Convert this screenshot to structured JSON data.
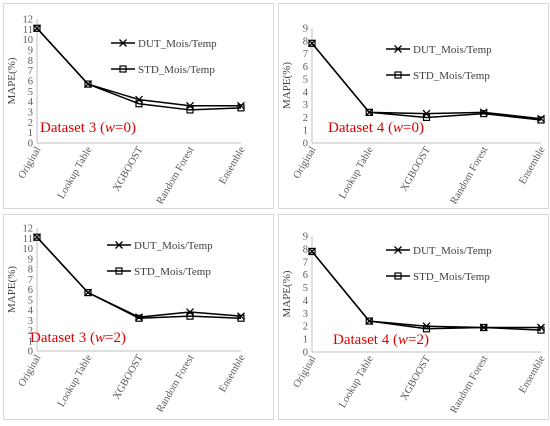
{
  "chart_data": [
    {
      "type": "line",
      "annotation": {
        "prefix": "Dataset 3 (",
        "var": "w",
        "suffix": "=0)"
      },
      "categories": [
        "Original",
        "Lookup Table",
        "XGBOOST",
        "Random Forest",
        "Ensemble"
      ],
      "ylabel": "MAPE(%)",
      "ylim": [
        0,
        12
      ],
      "ystep": 1,
      "grid": false,
      "legend_placement": "right",
      "series": [
        {
          "name": "DUT_Mois/Temp",
          "marker": "x",
          "values": [
            11.1,
            5.7,
            4.2,
            3.6,
            3.6
          ]
        },
        {
          "name": "STD_Mois/Temp",
          "marker": "square",
          "values": [
            11.1,
            5.7,
            3.8,
            3.2,
            3.4
          ]
        }
      ]
    },
    {
      "type": "line",
      "annotation": {
        "prefix": "Dataset 4 (",
        "var": "w",
        "suffix": "=0)"
      },
      "categories": [
        "Original",
        "Lookup Table",
        "XGBOOST",
        "Random Forest",
        "Ensemble"
      ],
      "ylabel": "MAPE(%)",
      "ylim": [
        0,
        9
      ],
      "ystep": 1,
      "grid": false,
      "legend_placement": "right",
      "series": [
        {
          "name": "DUT_Mois/Temp",
          "marker": "x",
          "values": [
            7.8,
            2.4,
            2.3,
            2.4,
            1.9
          ]
        },
        {
          "name": "STD_Mois/Temp",
          "marker": "square",
          "values": [
            7.8,
            2.4,
            2.0,
            2.3,
            1.8
          ]
        }
      ]
    },
    {
      "type": "line",
      "annotation": {
        "prefix": "Dataset 3 (",
        "var": "w",
        "suffix": "=2)"
      },
      "categories": [
        "Original",
        "Lookup Table",
        "XGBOOST",
        "Random Forest",
        "Ensemble"
      ],
      "ylabel": "MAPE(%)",
      "ylim": [
        0,
        12
      ],
      "ystep": 1,
      "grid": false,
      "legend_placement": "right",
      "series": [
        {
          "name": "DUT_Mois/Temp",
          "marker": "x",
          "values": [
            11.1,
            5.7,
            3.3,
            3.8,
            3.4
          ]
        },
        {
          "name": "STD_Mois/Temp",
          "marker": "square",
          "values": [
            11.1,
            5.7,
            3.2,
            3.4,
            3.2
          ]
        }
      ]
    },
    {
      "type": "line",
      "annotation": {
        "prefix": "Dataset 4 (",
        "var": "w",
        "suffix": "=2)"
      },
      "categories": [
        "Original",
        "Lookup Table",
        "XGBOOST",
        "Random Forest",
        "Ensemble"
      ],
      "ylabel": "MAPE(%)",
      "ylim": [
        0,
        9
      ],
      "ystep": 1,
      "grid": false,
      "legend_placement": "right",
      "series": [
        {
          "name": "DUT_Mois/Temp",
          "marker": "x",
          "values": [
            7.8,
            2.4,
            2.0,
            1.9,
            1.9
          ]
        },
        {
          "name": "STD_Mois/Temp",
          "marker": "square",
          "values": [
            7.8,
            2.4,
            1.8,
            1.9,
            1.7
          ]
        }
      ]
    }
  ]
}
